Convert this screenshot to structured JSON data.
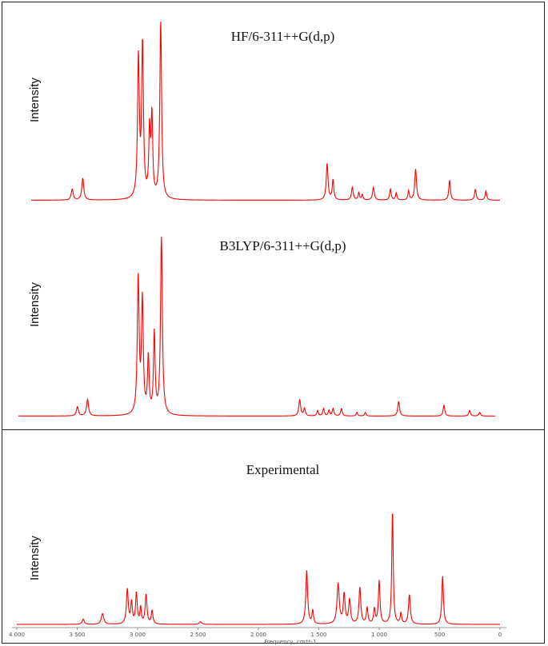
{
  "chart_data": [
    {
      "type": "line",
      "title": "HF/6-311++G(d,p)",
      "ylabel": "Intensity",
      "color": "#ff0000",
      "xlim": [
        4000,
        0
      ],
      "baseline": 0.02,
      "peaks": [
        {
          "x": 3650,
          "y": 0.06,
          "w": 10
        },
        {
          "x": 3560,
          "y": 0.12,
          "w": 10
        },
        {
          "x": 3085,
          "y": 0.77,
          "w": 9
        },
        {
          "x": 3050,
          "y": 0.84,
          "w": 9
        },
        {
          "x": 2990,
          "y": 0.36,
          "w": 8
        },
        {
          "x": 2970,
          "y": 0.44,
          "w": 8
        },
        {
          "x": 2895,
          "y": 0.98,
          "w": 9
        },
        {
          "x": 1475,
          "y": 0.2,
          "w": 9
        },
        {
          "x": 1425,
          "y": 0.11,
          "w": 8
        },
        {
          "x": 1260,
          "y": 0.07,
          "w": 9
        },
        {
          "x": 1205,
          "y": 0.04,
          "w": 7
        },
        {
          "x": 1175,
          "y": 0.03,
          "w": 7
        },
        {
          "x": 1080,
          "y": 0.07,
          "w": 9
        },
        {
          "x": 935,
          "y": 0.06,
          "w": 8
        },
        {
          "x": 885,
          "y": 0.04,
          "w": 7
        },
        {
          "x": 780,
          "y": 0.05,
          "w": 7
        },
        {
          "x": 720,
          "y": 0.17,
          "w": 9
        },
        {
          "x": 430,
          "y": 0.11,
          "w": 8
        },
        {
          "x": 210,
          "y": 0.06,
          "w": 8
        },
        {
          "x": 120,
          "y": 0.05,
          "w": 8
        }
      ]
    },
    {
      "type": "line",
      "title": "B3LYP/6-311++G(d,p)",
      "ylabel": "Intensity",
      "color": "#ff0000",
      "xlim": [
        4000,
        0
      ],
      "baseline": 0.02,
      "peaks": [
        {
          "x": 3505,
          "y": 0.05,
          "w": 10
        },
        {
          "x": 3420,
          "y": 0.09,
          "w": 10
        },
        {
          "x": 2995,
          "y": 0.74,
          "w": 9
        },
        {
          "x": 2960,
          "y": 0.62,
          "w": 9
        },
        {
          "x": 2910,
          "y": 0.31,
          "w": 8
        },
        {
          "x": 2860,
          "y": 0.44,
          "w": 8
        },
        {
          "x": 2800,
          "y": 0.99,
          "w": 9
        },
        {
          "x": 1640,
          "y": 0.09,
          "w": 9
        },
        {
          "x": 1600,
          "y": 0.04,
          "w": 8
        },
        {
          "x": 1490,
          "y": 0.03,
          "w": 7
        },
        {
          "x": 1440,
          "y": 0.04,
          "w": 8
        },
        {
          "x": 1395,
          "y": 0.03,
          "w": 7
        },
        {
          "x": 1360,
          "y": 0.04,
          "w": 8
        },
        {
          "x": 1290,
          "y": 0.04,
          "w": 8
        },
        {
          "x": 1160,
          "y": 0.02,
          "w": 7
        },
        {
          "x": 1090,
          "y": 0.02,
          "w": 7
        },
        {
          "x": 810,
          "y": 0.08,
          "w": 9
        },
        {
          "x": 430,
          "y": 0.06,
          "w": 8
        },
        {
          "x": 215,
          "y": 0.03,
          "w": 8
        },
        {
          "x": 130,
          "y": 0.02,
          "w": 8
        }
      ]
    },
    {
      "type": "line",
      "title": "Experimental",
      "ylabel": "Intensity",
      "color": "#ff0000",
      "xlim": [
        4000,
        0
      ],
      "xlabel": "Frequency, cm**-1",
      "xticks": [
        4000,
        3500,
        3000,
        2500,
        2000,
        1500,
        1000,
        500,
        0
      ],
      "xticklabels": [
        "4 000",
        "3 500",
        "3 000",
        "2 500",
        "2 000",
        "1 500",
        "1 000",
        "500",
        "0"
      ],
      "baseline": 0.0,
      "peaks": [
        {
          "x": 3450,
          "y": 0.04,
          "w": 10
        },
        {
          "x": 3290,
          "y": 0.08,
          "w": 12
        },
        {
          "x": 3085,
          "y": 0.26,
          "w": 9
        },
        {
          "x": 3050,
          "y": 0.16,
          "w": 8
        },
        {
          "x": 3010,
          "y": 0.23,
          "w": 8
        },
        {
          "x": 2975,
          "y": 0.12,
          "w": 7
        },
        {
          "x": 2930,
          "y": 0.22,
          "w": 9
        },
        {
          "x": 2880,
          "y": 0.1,
          "w": 8
        },
        {
          "x": 2480,
          "y": 0.02,
          "w": 12
        },
        {
          "x": 1600,
          "y": 0.4,
          "w": 9
        },
        {
          "x": 1550,
          "y": 0.1,
          "w": 7
        },
        {
          "x": 1340,
          "y": 0.3,
          "w": 11
        },
        {
          "x": 1290,
          "y": 0.22,
          "w": 9
        },
        {
          "x": 1245,
          "y": 0.18,
          "w": 9
        },
        {
          "x": 1160,
          "y": 0.27,
          "w": 9
        },
        {
          "x": 1100,
          "y": 0.12,
          "w": 8
        },
        {
          "x": 1040,
          "y": 0.11,
          "w": 8
        },
        {
          "x": 1000,
          "y": 0.32,
          "w": 8
        },
        {
          "x": 890,
          "y": 0.85,
          "w": 7
        },
        {
          "x": 820,
          "y": 0.08,
          "w": 7
        },
        {
          "x": 750,
          "y": 0.22,
          "w": 9
        },
        {
          "x": 475,
          "y": 0.36,
          "w": 8
        }
      ]
    }
  ]
}
